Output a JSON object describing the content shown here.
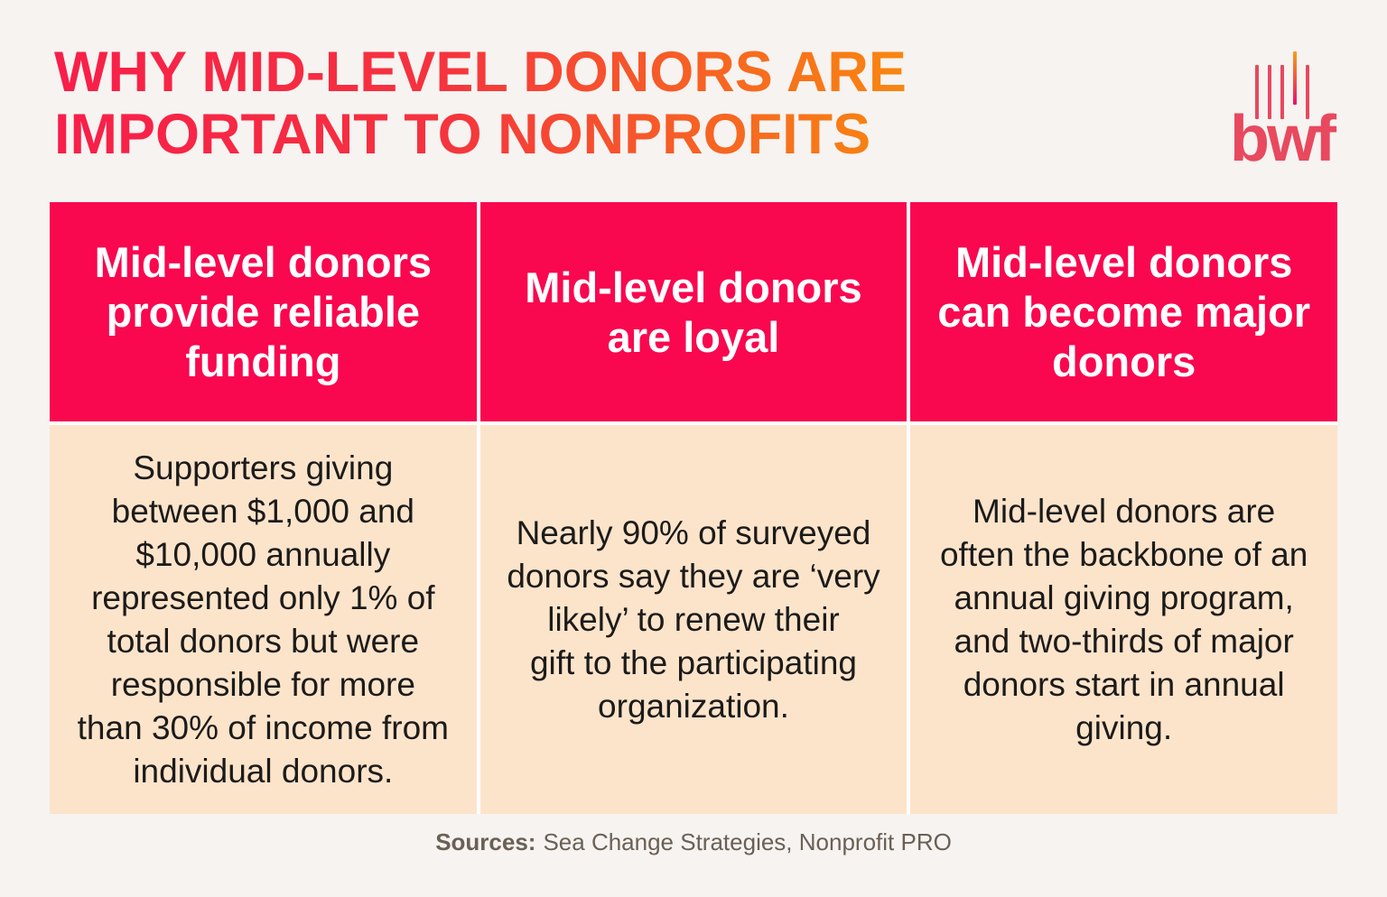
{
  "title": {
    "line1": "WHY MID-LEVEL DONORS ARE",
    "line2": "IMPORTANT TO NONPROFITS"
  },
  "logo": {
    "text": "bwf",
    "bars_icon": "five-vertical-bars",
    "color": "#E8495F",
    "accent_bar_gradient": [
      "#F99C1C",
      "#EC1065"
    ]
  },
  "colors": {
    "page_background": "#F6F3F1",
    "header_bg": "#F9074F",
    "cell_bg": "#FCE4CB",
    "header_text": "#FFFFFF",
    "body_text": "#1C1B19",
    "title_gradient_start": "#F81E4A",
    "title_gradient_end": "#F8870F",
    "sources_text": "#6B6054"
  },
  "table": {
    "columns": [
      {
        "header": "Mid-level donors\nprovide reliable\nfunding",
        "body": "Supporters giving\nbetween $1,000 and\n$10,000 annually\nrepresented only 1% of\ntotal donors but were\nresponsible for more\nthan 30% of income from\nindividual donors."
      },
      {
        "header": "Mid-level donors\nare loyal",
        "body": "Nearly 90% of surveyed\ndonors say they are ‘very\nlikely’ to renew their\ngift to the participating\norganization."
      },
      {
        "header": "Mid-level donors\ncan become major\ndonors",
        "body": "Mid-level donors are\noften the backbone of an\nannual giving program,\nand two-thirds of major\ndonors start in annual\ngiving."
      }
    ]
  },
  "sources": {
    "label": "Sources:",
    "text": "Sea Change Strategies, Nonprofit PRO"
  }
}
